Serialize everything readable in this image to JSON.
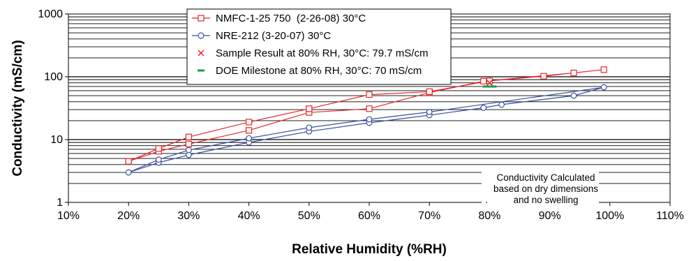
{
  "chart_data": {
    "type": "line",
    "xlabel": "Relative Humidity (%RH)",
    "ylabel": "Conductivity (mS/cm)",
    "xlim": [
      10,
      110
    ],
    "ylim": [
      1,
      1000
    ],
    "yscale": "log",
    "x_ticks": [
      "10%",
      "20%",
      "30%",
      "40%",
      "50%",
      "60%",
      "70%",
      "80%",
      "90%",
      "100%",
      "110%"
    ],
    "y_ticks": [
      "1",
      "10",
      "100",
      "1000"
    ],
    "grid": "horizontal",
    "legend_position": "top-center",
    "series": [
      {
        "name": "NMFC-1-25 750  (2-26-08) 30°C",
        "color": "#e8262b",
        "marker": "square",
        "points": [
          [
            20,
            4.5
          ],
          [
            25,
            6.5
          ],
          [
            30,
            8.5
          ],
          [
            40,
            14
          ],
          [
            50,
            27
          ],
          [
            60,
            31
          ],
          [
            70,
            56
          ],
          [
            79,
            85
          ],
          [
            94,
            115
          ],
          [
            99,
            130
          ],
          [
            89,
            102
          ],
          [
            80,
            86
          ],
          [
            70,
            58
          ],
          [
            60,
            52
          ],
          [
            50,
            31
          ],
          [
            40,
            19
          ],
          [
            30,
            11
          ],
          [
            25,
            7.2
          ],
          [
            20,
            4.5
          ]
        ]
      },
      {
        "name": "NRE-212 (3-20-07) 30°C",
        "color": "#3a4fa0",
        "marker": "circle",
        "points": [
          [
            20,
            3
          ],
          [
            25,
            4.3
          ],
          [
            30,
            5.7
          ],
          [
            40,
            9
          ],
          [
            50,
            13.5
          ],
          [
            60,
            18.5
          ],
          [
            70,
            24.5
          ],
          [
            79,
            32
          ],
          [
            82,
            36
          ],
          [
            94,
            50
          ],
          [
            99,
            68
          ],
          [
            70,
            27.5
          ],
          [
            60,
            21
          ],
          [
            50,
            15.5
          ],
          [
            40,
            10.5
          ],
          [
            30,
            6.8
          ],
          [
            25,
            4.8
          ],
          [
            20,
            3
          ]
        ]
      },
      {
        "name": "Sample Result at 80% RH, 30°C: 79.7 mS/cm",
        "color": "#e8262b",
        "marker": "x",
        "points": [
          [
            80,
            79.7
          ]
        ]
      },
      {
        "name": "DOE Milestone at 80% RH, 30°C: 70 mS/cm",
        "color": "#1a9a48",
        "marker": "dash",
        "points": [
          [
            80,
            70
          ]
        ]
      }
    ],
    "annotation": {
      "lines": [
        "Conductivity Calculated",
        "based on dry dimensions",
        "and no swelling"
      ],
      "dot": "."
    }
  }
}
